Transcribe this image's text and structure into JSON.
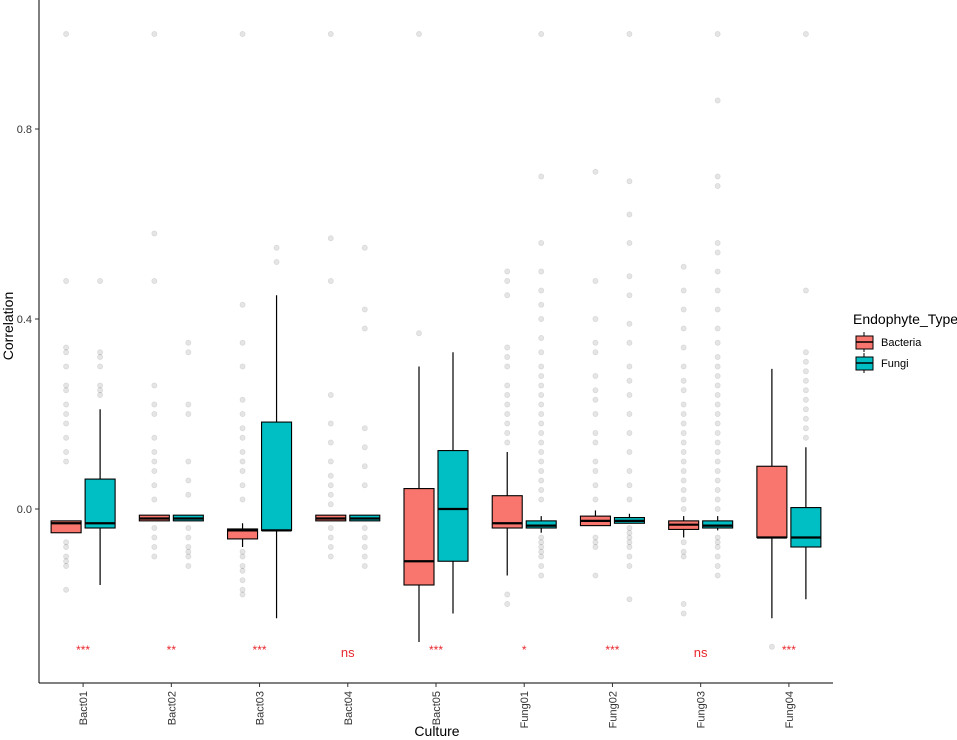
{
  "chart_data": {
    "type": "boxplot",
    "xlabel": "Culture",
    "ylabel": "Correlation",
    "categories": [
      "Bact01",
      "Bact02",
      "Bact03",
      "Bact04",
      "Bact05",
      "Fung01",
      "Fung02",
      "Fung03",
      "Fung04"
    ],
    "yticks": [
      "0.0",
      "0.4",
      "0.8"
    ],
    "ylim": [
      -0.35,
      1.05
    ],
    "legend": {
      "title": "Endophyte_Type",
      "position": "right",
      "entries": [
        {
          "label": "Bacteria",
          "color": "#F8766D"
        },
        {
          "label": "Fungi",
          "color": "#00BFC4"
        }
      ]
    },
    "significance": [
      "***",
      "**",
      "***",
      "ns",
      "***",
      "*",
      "***",
      "ns",
      "***"
    ],
    "series": [
      {
        "name": "Bacteria",
        "color": "#F8766D",
        "boxes": [
          {
            "q1": -0.05,
            "median": -0.03,
            "q3": -0.025,
            "low": -0.05,
            "high": -0.025
          },
          {
            "q1": -0.025,
            "median": -0.02,
            "q3": -0.013,
            "low": -0.025,
            "high": -0.013
          },
          {
            "q1": -0.063,
            "median": -0.045,
            "q3": -0.042,
            "low": -0.08,
            "high": -0.03
          },
          {
            "q1": -0.025,
            "median": -0.02,
            "q3": -0.013,
            "low": -0.025,
            "high": -0.013
          },
          {
            "q1": -0.16,
            "median": -0.11,
            "q3": 0.043,
            "low": -0.28,
            "high": 0.3
          },
          {
            "q1": -0.04,
            "median": -0.03,
            "q3": 0.028,
            "low": -0.14,
            "high": 0.12
          },
          {
            "q1": -0.035,
            "median": -0.025,
            "q3": -0.015,
            "low": -0.035,
            "high": -0.003
          },
          {
            "q1": -0.043,
            "median": -0.033,
            "q3": -0.025,
            "low": -0.06,
            "high": -0.015
          },
          {
            "q1": -0.06,
            "median": -0.06,
            "q3": 0.09,
            "low": -0.23,
            "high": 0.295
          }
        ],
        "outliers": [
          [
            -0.07,
            -0.08,
            -0.1,
            -0.11,
            -0.12,
            -0.17,
            0.1,
            0.12,
            0.15,
            0.18,
            0.2,
            0.22,
            0.25,
            0.26,
            0.3,
            0.33,
            0.34,
            0.48,
            1.0
          ],
          [
            -0.04,
            -0.06,
            -0.08,
            -0.1,
            0.02,
            0.05,
            0.08,
            0.1,
            0.12,
            0.15,
            0.2,
            0.22,
            0.26,
            0.48,
            0.58,
            1.0
          ],
          [
            -0.09,
            -0.1,
            -0.12,
            -0.13,
            -0.15,
            -0.17,
            -0.18,
            0.02,
            0.05,
            0.08,
            0.1,
            0.12,
            0.15,
            0.17,
            0.2,
            0.23,
            0.3,
            0.35,
            0.43,
            1.0
          ],
          [
            -0.04,
            -0.06,
            -0.08,
            -0.1,
            0.01,
            0.03,
            0.05,
            0.07,
            0.1,
            0.14,
            0.18,
            0.24,
            0.48,
            0.57,
            1.0
          ],
          [
            0.37,
            1.0
          ],
          [
            -0.18,
            -0.2,
            0.14,
            0.16,
            0.18,
            0.2,
            0.22,
            0.24,
            0.26,
            0.3,
            0.32,
            0.34,
            0.45,
            0.48,
            0.5
          ],
          [
            -0.06,
            -0.07,
            -0.08,
            -0.14,
            0.02,
            0.05,
            0.08,
            0.1,
            0.14,
            0.16,
            0.2,
            0.23,
            0.25,
            0.28,
            0.33,
            0.35,
            0.4,
            0.48,
            0.71
          ],
          [
            -0.07,
            -0.09,
            -0.1,
            -0.2,
            -0.22,
            0.0,
            0.02,
            0.04,
            0.06,
            0.08,
            0.1,
            0.12,
            0.14,
            0.16,
            0.18,
            0.2,
            0.22,
            0.25,
            0.27,
            0.3,
            0.34,
            0.38,
            0.42,
            0.46,
            0.51
          ],
          [
            -0.29
          ]
        ]
      },
      {
        "name": "Fungi",
        "color": "#00BFC4",
        "boxes": [
          {
            "q1": -0.04,
            "median": -0.03,
            "q3": 0.063,
            "low": -0.16,
            "high": 0.21
          },
          {
            "q1": -0.025,
            "median": -0.02,
            "q3": -0.013,
            "low": -0.025,
            "high": -0.013
          },
          {
            "q1": -0.045,
            "median": -0.045,
            "q3": 0.183,
            "low": -0.23,
            "high": 0.45
          },
          {
            "q1": -0.025,
            "median": -0.02,
            "q3": -0.013,
            "low": -0.025,
            "high": -0.013
          },
          {
            "q1": -0.11,
            "median": 0.0,
            "q3": 0.123,
            "low": -0.22,
            "high": 0.33
          },
          {
            "q1": -0.04,
            "median": -0.035,
            "q3": -0.025,
            "low": -0.05,
            "high": -0.015
          },
          {
            "q1": -0.03,
            "median": -0.025,
            "q3": -0.018,
            "low": -0.03,
            "high": -0.01
          },
          {
            "q1": -0.04,
            "median": -0.035,
            "q3": -0.025,
            "low": -0.045,
            "high": -0.015
          },
          {
            "q1": -0.08,
            "median": -0.06,
            "q3": 0.003,
            "low": -0.19,
            "high": 0.13
          }
        ],
        "outliers": [
          [
            0.24,
            0.25,
            0.26,
            0.3,
            0.32,
            0.33,
            0.48
          ],
          [
            -0.04,
            -0.06,
            -0.08,
            -0.09,
            -0.1,
            -0.12,
            0.03,
            0.06,
            0.1,
            0.2,
            0.22,
            0.33,
            0.35
          ],
          [
            0.52,
            0.55
          ],
          [
            -0.04,
            -0.06,
            -0.08,
            -0.1,
            -0.12,
            0.05,
            0.09,
            0.13,
            0.17,
            0.38,
            0.42,
            0.55
          ],
          [],
          [
            -0.06,
            -0.07,
            -0.08,
            -0.09,
            -0.1,
            -0.12,
            -0.14,
            0.02,
            0.04,
            0.06,
            0.08,
            0.1,
            0.12,
            0.14,
            0.16,
            0.18,
            0.2,
            0.22,
            0.24,
            0.26,
            0.28,
            0.3,
            0.33,
            0.36,
            0.4,
            0.43,
            0.46,
            0.5,
            0.56,
            0.7,
            1.0
          ],
          [
            -0.04,
            -0.05,
            -0.06,
            -0.07,
            -0.08,
            -0.1,
            -0.12,
            -0.19,
            0.02,
            0.05,
            0.08,
            0.12,
            0.16,
            0.2,
            0.24,
            0.27,
            0.3,
            0.35,
            0.39,
            0.45,
            0.49,
            0.56,
            0.62,
            0.69,
            1.0
          ],
          [
            -0.06,
            -0.07,
            -0.08,
            -0.1,
            -0.12,
            -0.14,
            0.0,
            0.02,
            0.04,
            0.06,
            0.08,
            0.1,
            0.12,
            0.14,
            0.16,
            0.18,
            0.2,
            0.22,
            0.24,
            0.26,
            0.28,
            0.3,
            0.32,
            0.35,
            0.38,
            0.42,
            0.46,
            0.5,
            0.54,
            0.56,
            0.68,
            0.7,
            0.86,
            1.0
          ],
          [
            0.15,
            0.17,
            0.19,
            0.21,
            0.23,
            0.25,
            0.27,
            0.29,
            0.31,
            0.33,
            0.46,
            1.0
          ]
        ]
      }
    ]
  }
}
